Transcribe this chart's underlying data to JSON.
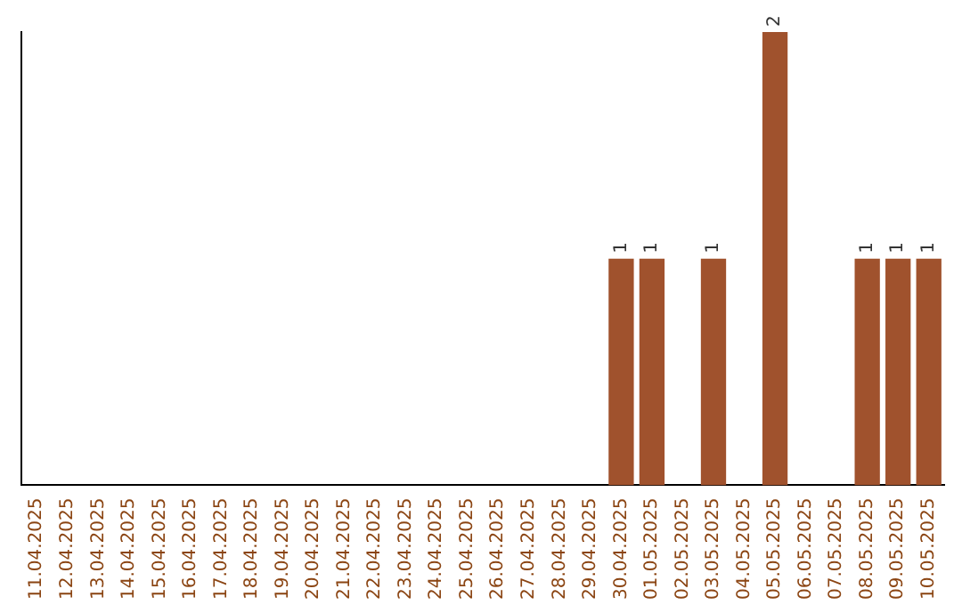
{
  "chart_data": {
    "type": "bar",
    "categories": [
      "11.04.2025",
      "12.04.2025",
      "13.04.2025",
      "14.04.2025",
      "15.04.2025",
      "16.04.2025",
      "17.04.2025",
      "18.04.2025",
      "19.04.2025",
      "20.04.2025",
      "21.04.2025",
      "22.04.2025",
      "23.04.2025",
      "24.04.2025",
      "25.04.2025",
      "26.04.2025",
      "27.04.2025",
      "28.04.2025",
      "29.04.2025",
      "30.04.2025",
      "01.05.2025",
      "02.05.2025",
      "03.05.2025",
      "04.05.2025",
      "05.05.2025",
      "06.05.2025",
      "07.05.2025",
      "08.05.2025",
      "09.05.2025",
      "10.05.2025"
    ],
    "values": [
      null,
      null,
      null,
      null,
      null,
      null,
      null,
      null,
      null,
      null,
      null,
      null,
      null,
      null,
      null,
      null,
      null,
      null,
      null,
      1,
      1,
      null,
      1,
      null,
      2,
      null,
      null,
      1,
      1,
      1
    ],
    "data_labels": true,
    "color": "#a0522d",
    "grid": false,
    "legend": false,
    "tick_labels": "x"
  }
}
